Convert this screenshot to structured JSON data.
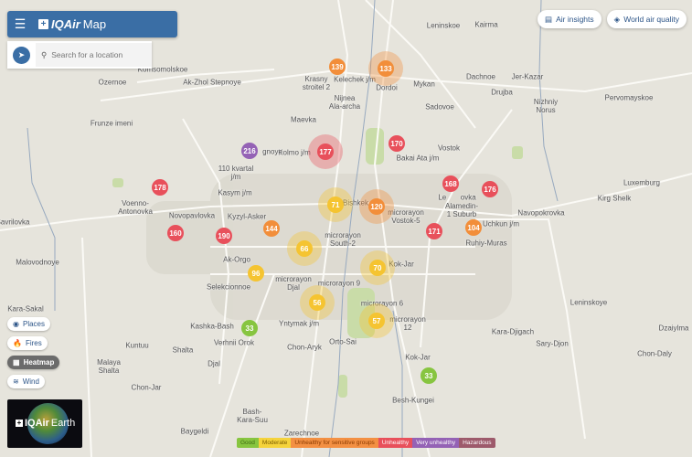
{
  "header": {
    "title_brand": "IQAir",
    "title_suffix": "Map",
    "menu_icon": "hamburger-icon"
  },
  "search": {
    "placeholder": "Search for a location",
    "value": ""
  },
  "top_buttons": {
    "air_insights": "Air insights",
    "world_air_quality": "World air quality"
  },
  "layers": {
    "places": "Places",
    "fires": "Fires",
    "heatmap": "Heatmap",
    "wind": "Wind",
    "active": "Heatmap"
  },
  "earth": {
    "brand": "IQAir",
    "suffix": "Earth"
  },
  "legend": [
    {
      "label": "Good",
      "color": "#87c540",
      "text": "#3d6b12"
    },
    {
      "label": "Moderate",
      "color": "#f5d33c",
      "text": "#7a5d00"
    },
    {
      "label": "Unhealthy for sensitive groups",
      "color": "#f39043",
      "text": "#8a3a00"
    },
    {
      "label": "Unhealthy",
      "color": "#e8505b",
      "text": "#ffffff"
    },
    {
      "label": "Very unhealthy",
      "color": "#9462b5",
      "text": "#ffffff"
    },
    {
      "label": "Hazardous",
      "color": "#9d5a6b",
      "text": "#ffffff"
    }
  ],
  "colors": {
    "good": "#87c540",
    "moderate": "#f5c431",
    "usg": "#f28e3a",
    "unhealthy": "#e8505b",
    "very_unhealthy": "#9462b5",
    "brand": "#3a6ea5"
  },
  "markers": [
    {
      "aqi": 139,
      "level": "usg"
    },
    {
      "aqi": 133,
      "level": "usg"
    },
    {
      "aqi": 216,
      "level": "very_unhealthy"
    },
    {
      "aqi": 177,
      "level": "unhealthy"
    },
    {
      "aqi": 170,
      "level": "unhealthy"
    },
    {
      "aqi": 178,
      "level": "unhealthy"
    },
    {
      "aqi": 168,
      "level": "unhealthy"
    },
    {
      "aqi": 176,
      "level": "unhealthy"
    },
    {
      "aqi": 71,
      "level": "moderate"
    },
    {
      "aqi": 120,
      "level": "usg"
    },
    {
      "aqi": 160,
      "level": "unhealthy"
    },
    {
      "aqi": 190,
      "level": "unhealthy"
    },
    {
      "aqi": 144,
      "level": "usg"
    },
    {
      "aqi": 171,
      "level": "unhealthy"
    },
    {
      "aqi": 104,
      "level": "usg"
    },
    {
      "aqi": 66,
      "level": "moderate"
    },
    {
      "aqi": 96,
      "level": "moderate"
    },
    {
      "aqi": 70,
      "level": "moderate"
    },
    {
      "aqi": 56,
      "level": "moderate"
    },
    {
      "aqi": 57,
      "level": "moderate"
    },
    {
      "aqi": 33,
      "level": "good"
    },
    {
      "aqi": 33,
      "level": "good"
    }
  ],
  "places": [
    "Leninskoe",
    "Kairma",
    "Komsomolskoe",
    "Ozernoe",
    "Ak-Zhol Stepnoye",
    "Krasny\nstroitel 2",
    "Kelechek j/m",
    "Dordoi",
    "Mykan",
    "Dachnoe",
    "Jer-Kazar",
    "Drujba",
    "Sadovoe",
    "Pervomayskoe",
    "Nizhniy\nNorus",
    "Nijnea\nAla-archa",
    "Maevka",
    "Frunze imeni",
    "Kolmo j/m",
    "Bakai Ata j/m",
    "Vostok",
    "110 kvartal\nj/m",
    "gnoye",
    "Le       ovka",
    "Alamedin-\n1 Suburb",
    "Kirg Shelk",
    "Luxemburg",
    "Kasym j/m",
    "Bishkek",
    "microrayon\nVostok-5",
    "Voenno-\nAntonovka",
    "Novopavlovka",
    "Navopokrovka",
    "Uchkun j/m",
    "Kyzyl-Asker",
    "Savrilovka",
    "Ruhiy-Muras",
    "microrayon\nSouth-2",
    "Malovodnoye",
    "Ak-Orgo",
    "Kok-Jar",
    "Selekcionnoe",
    "microrayon\nDjal",
    "microrayon 9",
    "Kara-Sakal",
    "microrayon 6",
    "microrayon\n12",
    "Leninskoye",
    "Kashka-Bash",
    "Yntymak j/m",
    "Kara-Djigach",
    "Verhnii Orok",
    "Dzaiylma",
    "Sary-Djon",
    "Chon-Aryk",
    "Orto-Sai",
    "Kuntuu",
    "Shalta",
    "Kok-Jar",
    "Chon-Daly",
    "Malaya\nShalta",
    "Djal",
    "Chon-Jar",
    "Besh-Kungei",
    "Bash-\nKara-Suu",
    "Baygeldi",
    "Zarechnoe"
  ]
}
